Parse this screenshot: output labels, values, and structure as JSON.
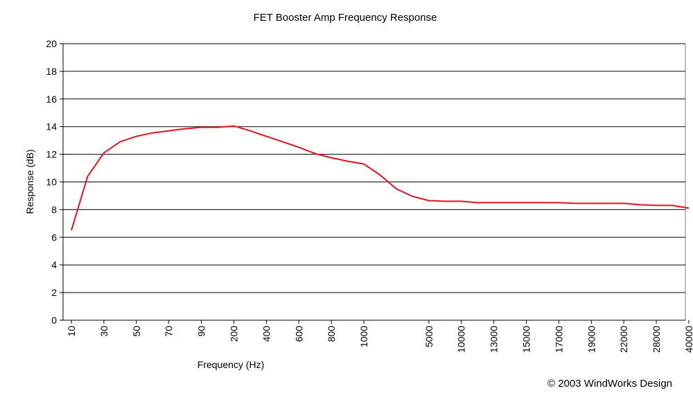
{
  "chart_data": {
    "type": "line",
    "title": "FET Booster Amp Frequency Response",
    "xlabel": "Frequency (Hz)",
    "ylabel": "Response (dB)",
    "ylim": [
      0,
      20
    ],
    "yticks": [
      0,
      2,
      4,
      6,
      8,
      10,
      12,
      14,
      16,
      18,
      20
    ],
    "grid": "horizontal",
    "x_scale": "categorical",
    "x_tick_labels": [
      "10",
      "30",
      "50",
      "70",
      "90",
      "200",
      "400",
      "600",
      "800",
      "1000",
      "5000",
      "10000",
      "13000",
      "15000",
      "17000",
      "19000",
      "22000",
      "28000",
      "40000"
    ],
    "series": [
      {
        "color": "#e8101a",
        "points": [
          {
            "x": "10",
            "y": 6.5
          },
          {
            "x": "20",
            "y": 10.4
          },
          {
            "x": "30",
            "y": 12.1
          },
          {
            "x": "40",
            "y": 12.9
          },
          {
            "x": "50",
            "y": 13.3
          },
          {
            "x": "60",
            "y": 13.55
          },
          {
            "x": "70",
            "y": 13.7
          },
          {
            "x": "80",
            "y": 13.85
          },
          {
            "x": "90",
            "y": 13.95
          },
          {
            "x": "100",
            "y": 13.95
          },
          {
            "x": "200",
            "y": 14.05
          },
          {
            "x": "300",
            "y": 13.7
          },
          {
            "x": "400",
            "y": 13.3
          },
          {
            "x": "500",
            "y": 12.9
          },
          {
            "x": "600",
            "y": 12.5
          },
          {
            "x": "700",
            "y": 12.05
          },
          {
            "x": "800",
            "y": 11.75
          },
          {
            "x": "900",
            "y": 11.5
          },
          {
            "x": "1000",
            "y": 11.3
          },
          {
            "x": "2000",
            "y": 10.5
          },
          {
            "x": "3000",
            "y": 9.5
          },
          {
            "x": "4000",
            "y": 8.95
          },
          {
            "x": "5000",
            "y": 8.65
          },
          {
            "x": "7500",
            "y": 8.6
          },
          {
            "x": "10000",
            "y": 8.6
          },
          {
            "x": "11500",
            "y": 8.5
          },
          {
            "x": "13000",
            "y": 8.5
          },
          {
            "x": "14000",
            "y": 8.5
          },
          {
            "x": "15000",
            "y": 8.5
          },
          {
            "x": "16000",
            "y": 8.5
          },
          {
            "x": "17000",
            "y": 8.5
          },
          {
            "x": "18000",
            "y": 8.45
          },
          {
            "x": "19000",
            "y": 8.45
          },
          {
            "x": "20500",
            "y": 8.45
          },
          {
            "x": "22000",
            "y": 8.45
          },
          {
            "x": "25000",
            "y": 8.35
          },
          {
            "x": "28000",
            "y": 8.3
          },
          {
            "x": "34000",
            "y": 8.3
          },
          {
            "x": "40000",
            "y": 8.1
          }
        ]
      }
    ]
  },
  "credit": "© 2003 WindWorks Design"
}
